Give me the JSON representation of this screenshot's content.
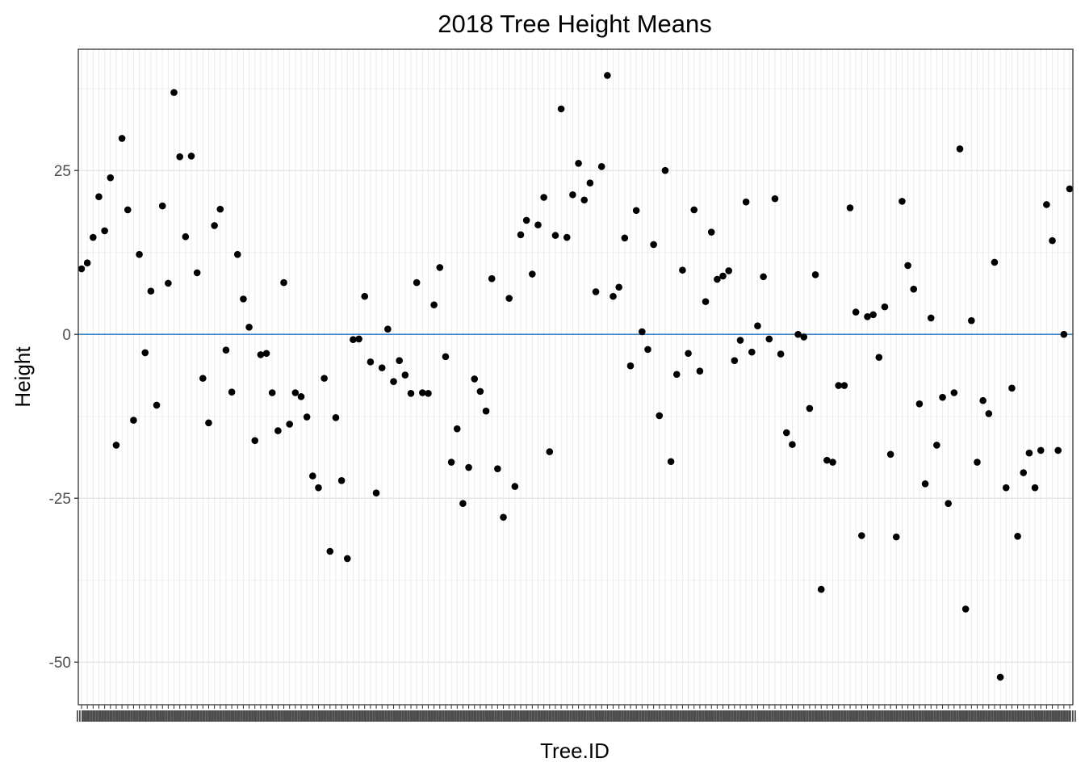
{
  "chart_data": {
    "type": "scatter",
    "title": "2018 Tree Height Means",
    "xlabel": "Tree.ID",
    "ylabel": "Height",
    "ylim": [
      -56.5,
      43.5
    ],
    "yticks": [
      25,
      0,
      -25,
      -50
    ],
    "ytick_labels": [
      "25",
      "0",
      "-25",
      "-50"
    ],
    "grid": true,
    "x_tick_labels_legible": false,
    "reference_line": {
      "y": 0,
      "color": "#3d85c6"
    },
    "point_color": "#000000",
    "series": [
      {
        "values": [
          10,
          10.9,
          14.8,
          21,
          15.8,
          23.9,
          -16.9,
          29.9,
          19,
          -13.1,
          12.2,
          -2.8,
          6.6,
          -10.8,
          19.6,
          7.8,
          36.9,
          27.1,
          14.9,
          27.2,
          9.4,
          -6.7,
          -13.5,
          16.6,
          19.1,
          -2.4,
          -8.8,
          12.2,
          5.4,
          1.1,
          -16.2,
          -3.1,
          -2.9,
          -8.9,
          -14.7,
          7.9,
          -13.7,
          -8.9,
          -9.5,
          -12.6,
          -21.6,
          -23.4,
          -6.7,
          -33.1,
          -12.7,
          -22.3,
          -34.2,
          -0.8,
          -0.7,
          5.8,
          -4.2,
          -24.2,
          -5.1,
          0.8,
          -7.2,
          -4,
          -6.2,
          -9,
          7.9,
          -8.9,
          -9,
          4.5,
          10.2,
          -3.4,
          -19.5,
          -14.4,
          -25.8,
          -20.3,
          -6.8,
          -8.7,
          -11.7,
          8.5,
          -20.5,
          -27.9,
          5.5,
          -23.2,
          15.2,
          17.4,
          9.2,
          16.7,
          20.9,
          -17.9,
          15.1,
          34.4,
          14.8,
          21.3,
          26.1,
          20.5,
          23.1,
          6.5,
          25.6,
          39.5,
          5.8,
          7.2,
          14.7,
          -4.8,
          18.9,
          0.4,
          -2.3,
          13.7,
          -12.4,
          25,
          -19.4,
          -6.1,
          9.8,
          -2.9,
          19,
          -5.6,
          5,
          15.6,
          8.4,
          8.9,
          9.7,
          -4,
          -0.9,
          20.2,
          -2.7,
          1.3,
          8.8,
          -0.7,
          20.7,
          -3,
          -15,
          -16.8,
          0,
          -0.4,
          -11.3,
          9.1,
          -38.9,
          -19.2,
          -19.5,
          -7.8,
          -7.8,
          19.3,
          3.4,
          -30.7,
          2.7,
          3,
          -3.5,
          4.2,
          -18.3,
          -30.9,
          20.3,
          10.5,
          6.9,
          -10.6,
          -22.8,
          2.5,
          -16.9,
          -9.6,
          -25.8,
          -8.9,
          28.3,
          -41.9,
          2.1,
          -19.5,
          -10.1,
          -12.1,
          11,
          -52.3,
          -23.4,
          -8.2,
          -30.8,
          -21.1,
          -18.1,
          -23.4,
          -17.7,
          19.8,
          14.3,
          -17.7,
          0,
          22.2
        ]
      }
    ]
  }
}
